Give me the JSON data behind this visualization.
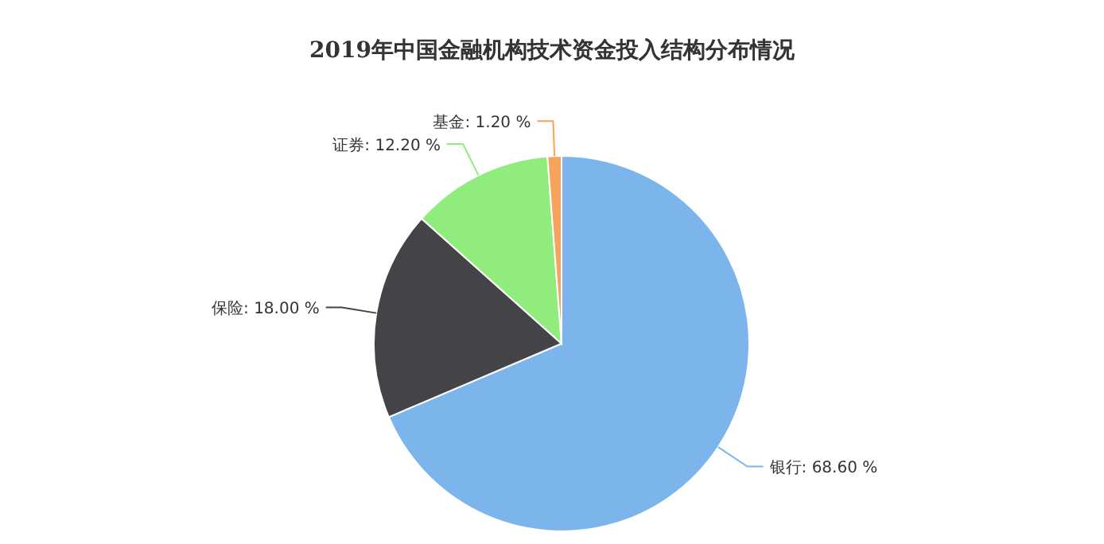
{
  "chart_data": {
    "type": "pie",
    "title": "2019年中国金融机构技术资金投入结构分布情况",
    "categories": [
      "银行",
      "保险",
      "证券",
      "基金"
    ],
    "values": [
      68.6,
      18.0,
      12.2,
      1.2
    ],
    "value_labels": [
      "68.60 %",
      "18.00 %",
      "12.20 %",
      "1.20 %"
    ],
    "colors": [
      "#7cb5ec",
      "#434348",
      "#90ed7d",
      "#f7a35c"
    ]
  }
}
